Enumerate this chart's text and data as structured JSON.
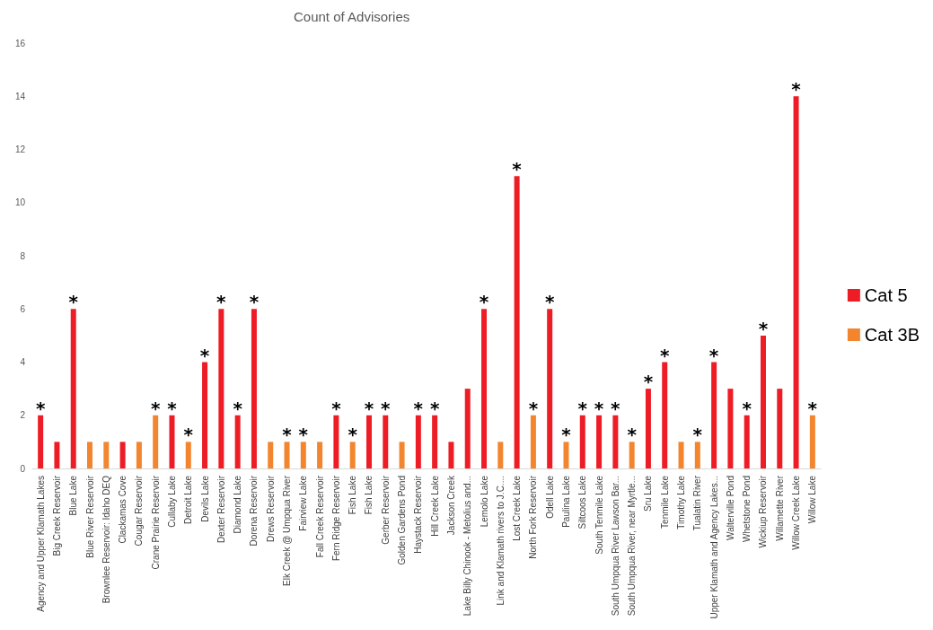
{
  "chart_data": {
    "type": "bar",
    "title": "Count of Advisories",
    "stacked": true,
    "legend": "right",
    "grid": false,
    "categories": [
      "Agency and Upper Klamath Lakes",
      "Big Creek Reservoir",
      "Blue Lake",
      "Blue River Reservoir",
      "Brownlee Reservoir: Idaho DEQ",
      "Clackamas Cove",
      "Cougar Reservoir",
      "Crane Prairie Reservoir",
      "Cullaby Lake",
      "Detroit Lake",
      "Devils Lake",
      "Dexter Reservoir",
      "Diamond Lake",
      "Dorena Reservoir",
      "Drews Reservoir",
      "Elk Creek @ Umpqua River",
      "Fairview Lake",
      "Fall Creek Reservoir",
      "Fern Ridge Reservoir",
      "Fish Lake",
      "Fish Lake",
      "Gerber Reservoir",
      "Golden Gardens Pond",
      "Haystack Reservoir",
      "Hill Creek Lake",
      "Jackson Creek",
      "Lake Billy Chinook - Metolius and...",
      "Lemolo Lake",
      "Link and Klamath rivers to J.C....",
      "Lost Creek Lake",
      "North Fork Reservoir",
      "Odell Lake",
      "Paulina Lake",
      "Siltcoos Lake",
      "South Tenmile Lake",
      "South Umpqua River Lawson Bar...",
      "South Umpqua River, near Myrtle...",
      "Sru Lake",
      "Tenmile Lake",
      "Timothy Lake",
      "Tualatin River",
      "Upper Klamath and Agency Lakes...",
      "Walterville Pond",
      "Whetstone Pond",
      "Wickiup Reservoir",
      "Willamette River",
      "Willow Creek Lake",
      "Willow Lake"
    ],
    "ylim": [
      0,
      16
    ],
    "yticks": [
      0,
      2,
      4,
      6,
      8,
      10,
      12,
      14,
      16
    ],
    "series": [
      {
        "name": "Cat 5",
        "color": "#ee1c25",
        "values": [
          2,
          1,
          6,
          null,
          null,
          1,
          null,
          null,
          2,
          null,
          4,
          6,
          2,
          6,
          null,
          null,
          null,
          null,
          2,
          null,
          2,
          2,
          null,
          2,
          2,
          1,
          3,
          6,
          null,
          11,
          null,
          6,
          null,
          2,
          2,
          2,
          null,
          3,
          4,
          null,
          null,
          4,
          3,
          2,
          5,
          3,
          14,
          null
        ],
        "value_labels": [
          "*",
          null,
          "*",
          null,
          null,
          null,
          null,
          null,
          "*",
          null,
          "*",
          "*",
          "*",
          "*",
          null,
          null,
          null,
          null,
          "*",
          null,
          "*",
          "*",
          null,
          "*",
          "*",
          null,
          null,
          "*",
          null,
          "*",
          null,
          "*",
          null,
          "*",
          "*",
          "*",
          null,
          "*",
          "*",
          null,
          null,
          "*",
          null,
          "*",
          "*",
          null,
          "*",
          null
        ]
      },
      {
        "name": "Cat 3B",
        "color": "#f2852e",
        "values": [
          null,
          null,
          null,
          1,
          1,
          null,
          1,
          2,
          null,
          1,
          null,
          null,
          null,
          null,
          1,
          1,
          1,
          1,
          null,
          1,
          null,
          null,
          1,
          null,
          null,
          null,
          null,
          null,
          1,
          null,
          2,
          null,
          1,
          null,
          null,
          null,
          1,
          null,
          null,
          1,
          1,
          null,
          null,
          null,
          null,
          null,
          null,
          2
        ],
        "value_labels": [
          null,
          null,
          null,
          null,
          null,
          null,
          null,
          "*",
          null,
          "*",
          null,
          null,
          null,
          null,
          null,
          "*",
          "*",
          null,
          null,
          "*",
          null,
          null,
          null,
          null,
          null,
          null,
          null,
          null,
          null,
          null,
          "*",
          null,
          "*",
          null,
          null,
          null,
          "*",
          null,
          null,
          null,
          "*",
          null,
          null,
          null,
          null,
          null,
          null,
          "*"
        ]
      }
    ]
  }
}
